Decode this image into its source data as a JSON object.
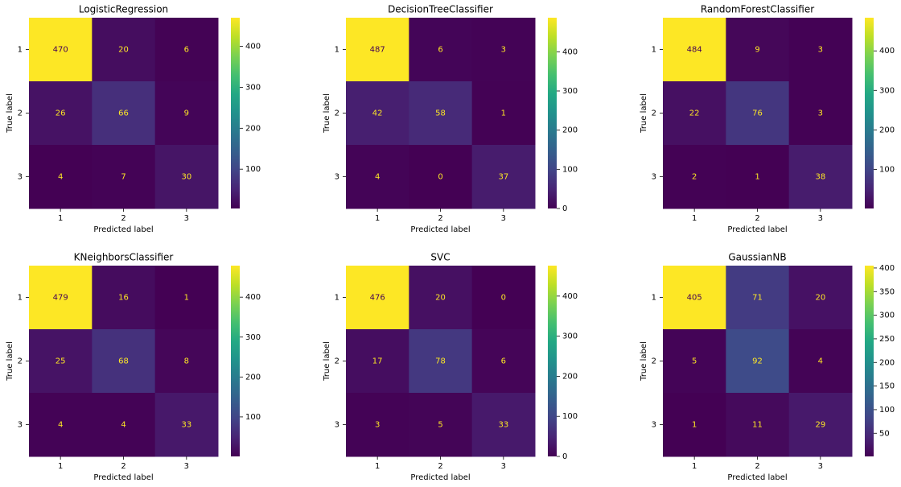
{
  "chart_data": [
    {
      "type": "heatmap",
      "title": "LogisticRegression",
      "xlabel": "Predicted label",
      "ylabel": "True label",
      "colormap": "viridis",
      "x": [
        "1",
        "2",
        "3"
      ],
      "y": [
        "1",
        "2",
        "3"
      ],
      "values": [
        [
          470,
          20,
          6
        ],
        [
          26,
          66,
          9
        ],
        [
          4,
          7,
          30
        ]
      ],
      "clim": [
        4,
        470
      ],
      "cticks": [
        100,
        200,
        300,
        400
      ]
    },
    {
      "type": "heatmap",
      "title": "DecisionTreeClassifier",
      "xlabel": "Predicted label",
      "ylabel": "True label",
      "colormap": "viridis",
      "x": [
        "1",
        "2",
        "3"
      ],
      "y": [
        "1",
        "2",
        "3"
      ],
      "values": [
        [
          487,
          6,
          3
        ],
        [
          42,
          58,
          1
        ],
        [
          4,
          0,
          37
        ]
      ],
      "clim": [
        0,
        487
      ],
      "cticks": [
        0,
        100,
        200,
        300,
        400
      ]
    },
    {
      "type": "heatmap",
      "title": "RandomForestClassifier",
      "xlabel": "Predicted label",
      "ylabel": "True label",
      "colormap": "viridis",
      "x": [
        "1",
        "2",
        "3"
      ],
      "y": [
        "1",
        "2",
        "3"
      ],
      "values": [
        [
          484,
          9,
          3
        ],
        [
          22,
          76,
          3
        ],
        [
          2,
          1,
          38
        ]
      ],
      "clim": [
        1,
        484
      ],
      "cticks": [
        100,
        200,
        300,
        400
      ]
    },
    {
      "type": "heatmap",
      "title": "KNeighborsClassifier",
      "xlabel": "Predicted label",
      "ylabel": "True label",
      "colormap": "viridis",
      "x": [
        "1",
        "2",
        "3"
      ],
      "y": [
        "1",
        "2",
        "3"
      ],
      "values": [
        [
          479,
          16,
          1
        ],
        [
          25,
          68,
          8
        ],
        [
          4,
          4,
          33
        ]
      ],
      "clim": [
        1,
        479
      ],
      "cticks": [
        100,
        200,
        300,
        400
      ]
    },
    {
      "type": "heatmap",
      "title": "SVC",
      "xlabel": "Predicted label",
      "ylabel": "True label",
      "colormap": "viridis",
      "x": [
        "1",
        "2",
        "3"
      ],
      "y": [
        "1",
        "2",
        "3"
      ],
      "values": [
        [
          476,
          20,
          0
        ],
        [
          17,
          78,
          6
        ],
        [
          3,
          5,
          33
        ]
      ],
      "clim": [
        0,
        476
      ],
      "cticks": [
        0,
        100,
        200,
        300,
        400
      ]
    },
    {
      "type": "heatmap",
      "title": "GaussianNB",
      "xlabel": "Predicted label",
      "ylabel": "True label",
      "colormap": "viridis",
      "x": [
        "1",
        "2",
        "3"
      ],
      "y": [
        "1",
        "2",
        "3"
      ],
      "values": [
        [
          405,
          71,
          20
        ],
        [
          5,
          92,
          4
        ],
        [
          1,
          11,
          29
        ]
      ],
      "clim": [
        1,
        405
      ],
      "cticks": [
        50,
        100,
        150,
        200,
        250,
        300,
        350,
        400
      ]
    }
  ]
}
